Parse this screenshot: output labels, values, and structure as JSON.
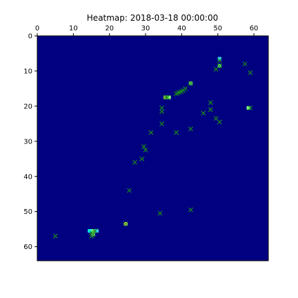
{
  "chart_data": {
    "type": "heatmap",
    "title": "Heatmap: 2018-03-18 00:00:00",
    "xlabel": "",
    "ylabel": "",
    "xlim": [
      0,
      64
    ],
    "ylim": [
      64,
      0
    ],
    "x_ticks": [
      0,
      10,
      20,
      30,
      40,
      50,
      60
    ],
    "y_ticks": [
      0,
      10,
      20,
      30,
      40,
      50,
      60
    ],
    "x_axis_position": "top",
    "y_axis_inverted": true,
    "grid": false,
    "colors": {
      "background": "#000080",
      "marker": "#1a8a1a",
      "hot_cells": [
        "#00ffff",
        "#7fff7f",
        "#ffff66",
        "#33ccff"
      ]
    },
    "cells": [
      {
        "x": 50,
        "y": 6,
        "color": "#33ccff"
      },
      {
        "x": 50,
        "y": 8,
        "color": "#7fff7f"
      },
      {
        "x": 42,
        "y": 13,
        "color": "#7fff7f"
      },
      {
        "x": 35,
        "y": 17,
        "color": "#ffff66"
      },
      {
        "x": 36,
        "y": 17,
        "color": "#7fff7f"
      },
      {
        "x": 58,
        "y": 20,
        "color": "#7fff7f"
      },
      {
        "x": 24,
        "y": 53,
        "color": "#ffff66"
      },
      {
        "x": 14,
        "y": 55,
        "color": "#00ffff"
      },
      {
        "x": 15,
        "y": 55,
        "color": "#7fff7f"
      },
      {
        "x": 16,
        "y": 55,
        "color": "#33ccff"
      },
      {
        "x": 15,
        "y": 56,
        "color": "#7fff7f"
      }
    ],
    "markers": [
      {
        "x": 50.5,
        "y": 7
      },
      {
        "x": 50.5,
        "y": 8.5
      },
      {
        "x": 49.5,
        "y": 9.5
      },
      {
        "x": 57.5,
        "y": 8
      },
      {
        "x": 59,
        "y": 10.5
      },
      {
        "x": 42.5,
        "y": 13.5
      },
      {
        "x": 41,
        "y": 15
      },
      {
        "x": 40.5,
        "y": 15.5
      },
      {
        "x": 40,
        "y": 15.8
      },
      {
        "x": 39.5,
        "y": 16
      },
      {
        "x": 39,
        "y": 16.2
      },
      {
        "x": 38.5,
        "y": 16.5
      },
      {
        "x": 36,
        "y": 17.5
      },
      {
        "x": 35.5,
        "y": 17.5
      },
      {
        "x": 48,
        "y": 19
      },
      {
        "x": 59,
        "y": 20.5
      },
      {
        "x": 34.5,
        "y": 20.5
      },
      {
        "x": 34.5,
        "y": 21.5
      },
      {
        "x": 48,
        "y": 21
      },
      {
        "x": 46,
        "y": 22
      },
      {
        "x": 49.5,
        "y": 23.5
      },
      {
        "x": 50.5,
        "y": 24.5
      },
      {
        "x": 34.5,
        "y": 25
      },
      {
        "x": 42.5,
        "y": 26.5
      },
      {
        "x": 31.5,
        "y": 27.5
      },
      {
        "x": 38.5,
        "y": 27.5
      },
      {
        "x": 29.5,
        "y": 31.5
      },
      {
        "x": 30,
        "y": 32.5
      },
      {
        "x": 29,
        "y": 35
      },
      {
        "x": 27,
        "y": 36
      },
      {
        "x": 25.5,
        "y": 44
      },
      {
        "x": 42.5,
        "y": 49.5
      },
      {
        "x": 34,
        "y": 50.5
      },
      {
        "x": 24.5,
        "y": 53.5
      },
      {
        "x": 16,
        "y": 55.5
      },
      {
        "x": 15,
        "y": 56
      },
      {
        "x": 15.5,
        "y": 56.5
      },
      {
        "x": 15,
        "y": 57
      },
      {
        "x": 5,
        "y": 57
      }
    ]
  }
}
